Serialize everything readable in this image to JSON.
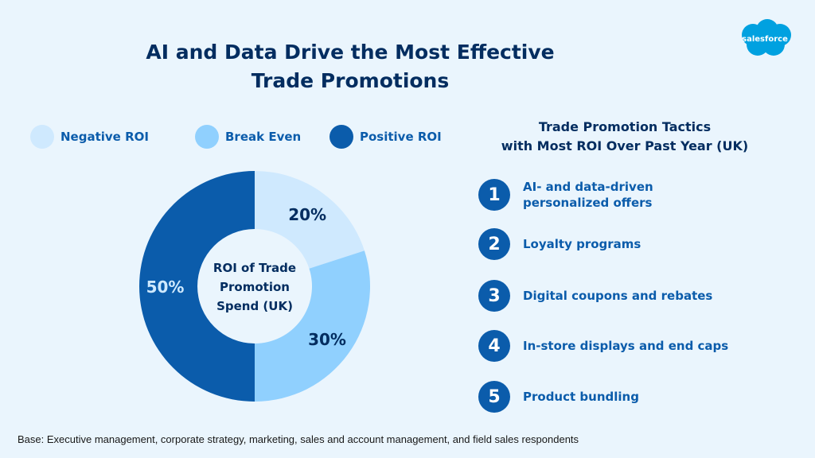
{
  "title_line1": "AI and Data Drive the Most Effective",
  "title_line2": "Trade Promotions",
  "logo_text": "salesforce",
  "legend": [
    {
      "label": "Negative ROI",
      "color": "#cfe9fe"
    },
    {
      "label": "Break Even",
      "color": "#90d0fe"
    },
    {
      "label": "Positive ROI",
      "color": "#0b5cab"
    }
  ],
  "chart_data": {
    "type": "pie",
    "title": "ROI of Trade Promotion Spend (UK)",
    "center_label": [
      "ROI of Trade",
      "Promotion",
      "Spend (UK)"
    ],
    "categories": [
      "Negative ROI",
      "Break Even",
      "Positive ROI"
    ],
    "values": [
      20,
      30,
      50
    ],
    "labels": [
      "20%",
      "30%",
      "50%"
    ],
    "colors": [
      "#cfe9fe",
      "#90d0fe",
      "#0b5cab"
    ],
    "label_colors": [
      "#032d60",
      "#032d60",
      "#cfe9fe"
    ],
    "legend_position": "top"
  },
  "tactics_title_line1": "Trade Promotion Tactics",
  "tactics_title_line2": "with Most ROI Over Past Year (UK)",
  "tactics": [
    {
      "number": "1",
      "label": "AI- and data-driven personalized offers"
    },
    {
      "number": "2",
      "label": "Loyalty programs"
    },
    {
      "number": "3",
      "label": "Digital coupons and rebates"
    },
    {
      "number": "4",
      "label": "In-store displays and end caps"
    },
    {
      "number": "5",
      "label": "Product bundling"
    }
  ],
  "footnote": "Base: Executive management, corporate strategy, marketing, sales and account management, and field sales respondents"
}
